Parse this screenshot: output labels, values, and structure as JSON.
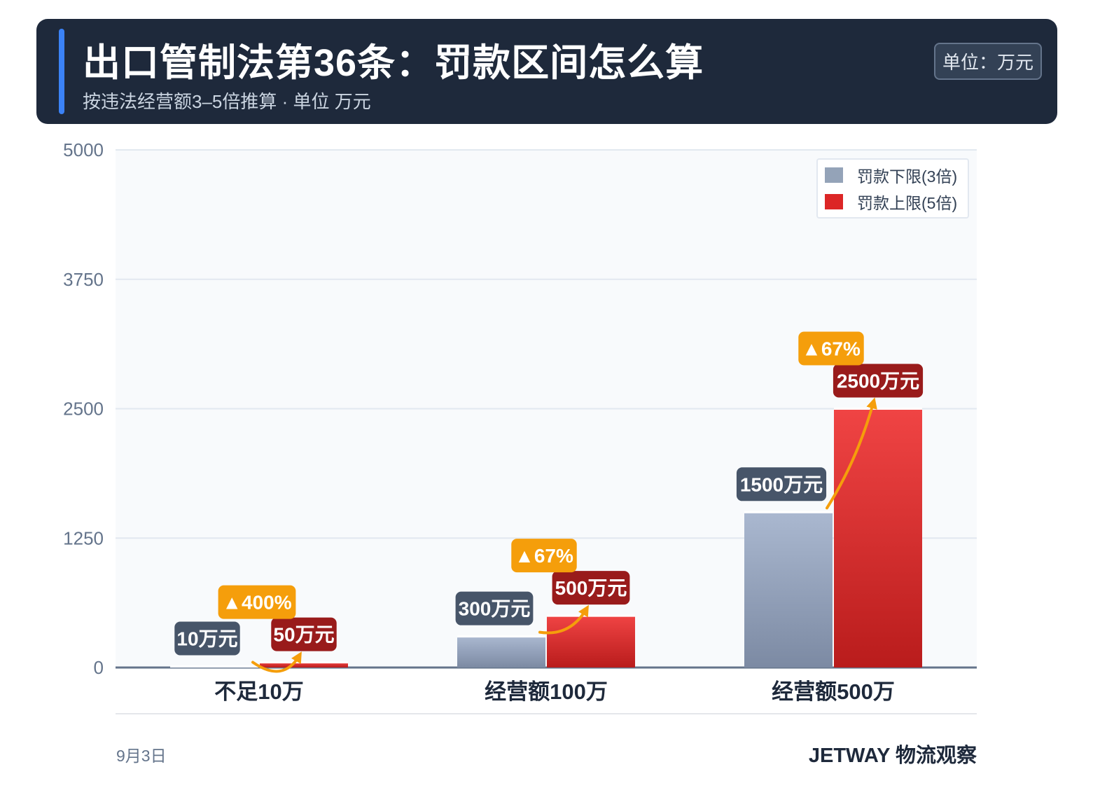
{
  "header": {
    "title": "出口管制法第36条：罚款区间怎么算",
    "subtitle": "按违法经营额3–5倍推算 · 单位 万元",
    "unit_badge": "单位：万元"
  },
  "chart_data": {
    "type": "bar",
    "categories": [
      "不足10万",
      "经营额100万",
      "经营额500万"
    ],
    "series": [
      {
        "name": "罚款下限(3倍)",
        "values": [
          10,
          300,
          1500
        ],
        "labels": [
          "10万元",
          "300万元",
          "1500万元"
        ]
      },
      {
        "name": "罚款上限(5倍)",
        "values": [
          50,
          500,
          2500
        ],
        "labels": [
          "50万元",
          "500万元",
          "2500万元"
        ]
      }
    ],
    "increase_labels": [
      "▲400%",
      "▲67%",
      "▲67%"
    ],
    "yticks": [
      "0",
      "1250",
      "2500",
      "3750",
      "5000"
    ],
    "ylim": [
      0,
      5000
    ],
    "legend_position": "top-right",
    "grid": true,
    "colors": {
      "lower_top": "#aab8d0",
      "lower_bottom": "#7c8aa3",
      "upper_top": "#f04444",
      "upper_bottom": "#b91c1c",
      "lower_label_bg": "#475569",
      "upper_label_bg": "#991b1b",
      "increase_bg": "#f59e0b",
      "arrow": "#f59e0b",
      "legend_lower": "#94a3b8",
      "legend_upper": "#dc2626"
    }
  },
  "footer": {
    "date": "9月3日",
    "brand": "JETWAY 物流观察"
  }
}
